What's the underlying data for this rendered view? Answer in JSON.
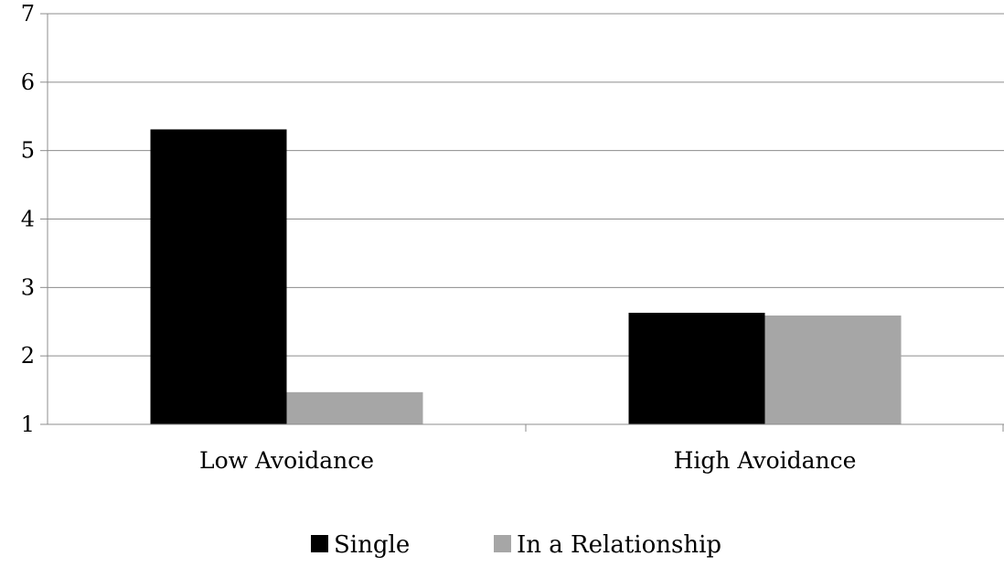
{
  "chart_data": {
    "type": "bar",
    "title": "",
    "xlabel": "",
    "ylabel": "",
    "categories": [
      "Low Avoidance",
      "High Avoidance"
    ],
    "series": [
      {
        "name": "Single",
        "values": [
          5.31,
          2.63
        ],
        "color": "#000000"
      },
      {
        "name": "In a Relationship",
        "values": [
          1.47,
          2.59
        ],
        "color": "#a6a6a6"
      }
    ],
    "ylim": [
      1,
      7
    ],
    "yticks": [
      1,
      2,
      3,
      4,
      5,
      6,
      7
    ],
    "grid": true,
    "legend_position": "bottom"
  }
}
